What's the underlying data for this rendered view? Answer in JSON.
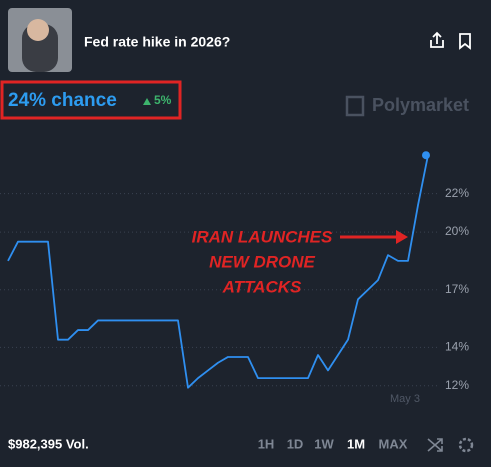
{
  "header": {
    "title": "Fed rate hike in 2026?",
    "chance": "24% chance",
    "change": "5%",
    "brand": "Polymarket"
  },
  "footer": {
    "volume": "$982,395 Vol.",
    "ranges": [
      "1H",
      "1D",
      "1W",
      "1M",
      "MAX"
    ],
    "active_range": "1M"
  },
  "chart_data": {
    "type": "line",
    "annotation": [
      "IRAN LAUNCHES",
      "NEW DRONE",
      "ATTACKS"
    ],
    "categories": [
      null,
      null,
      null,
      null,
      null,
      null,
      null,
      null,
      null,
      null,
      null,
      null,
      null,
      null,
      null,
      null,
      null,
      null,
      null,
      null,
      null,
      null,
      null,
      null,
      null,
      null,
      null,
      null,
      null,
      null,
      null,
      null,
      null,
      null,
      null,
      null,
      null,
      null,
      null,
      null,
      "May 3",
      null,
      null
    ],
    "values": [
      18.5,
      19.5,
      19.5,
      19.5,
      19.5,
      14.4,
      14.4,
      14.9,
      14.9,
      15.4,
      15.4,
      15.4,
      15.4,
      15.4,
      15.4,
      15.4,
      15.4,
      15.4,
      11.9,
      12.4,
      12.8,
      13.2,
      13.5,
      13.5,
      13.5,
      12.4,
      12.4,
      12.4,
      12.4,
      12.4,
      12.4,
      13.6,
      12.8,
      13.6,
      14.4,
      16.5,
      17,
      17.5,
      18.8,
      18.5,
      18.5,
      21.4,
      24
    ],
    "color": "#2f8ff0",
    "ylim": [
      11,
      25
    ],
    "yticks": [
      {
        "value": 12,
        "label": "12%"
      },
      {
        "value": 14,
        "label": "14%"
      },
      {
        "value": 17,
        "label": "17%"
      },
      {
        "value": 20,
        "label": "20%"
      },
      {
        "value": 22,
        "label": "22%"
      }
    ],
    "grid": true
  }
}
